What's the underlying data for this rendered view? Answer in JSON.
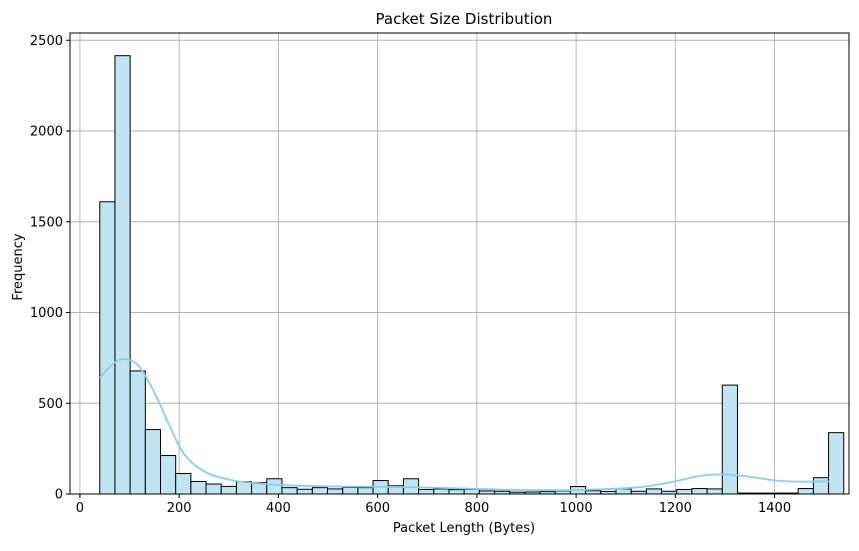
{
  "chart_data": {
    "type": "bar",
    "subtype": "histogram-with-kde",
    "title": "Packet Size Distribution",
    "xlabel": "Packet Length (Bytes)",
    "ylabel": "Frequency",
    "xlim": [
      -20,
      1550
    ],
    "ylim": [
      0,
      2540
    ],
    "xticks": [
      0,
      200,
      400,
      600,
      800,
      1000,
      1200,
      1400
    ],
    "yticks": [
      0,
      500,
      1000,
      1500,
      2000,
      2500
    ],
    "grid": true,
    "bin_start": 40,
    "bin_width": 30.6,
    "values": [
      1610,
      2415,
      678,
      355,
      212,
      113,
      69,
      55,
      42,
      68,
      62,
      84,
      35,
      26,
      35,
      28,
      36,
      35,
      74,
      45,
      84,
      25,
      28,
      24,
      25,
      17,
      15,
      10,
      11,
      13,
      17,
      41,
      18,
      14,
      28,
      15,
      28,
      15,
      25,
      30,
      28,
      600,
      5,
      5,
      5,
      5,
      30,
      90,
      338
    ],
    "kde": {
      "x": [
        40,
        60,
        80,
        100,
        120,
        150,
        180,
        210,
        250,
        300,
        350,
        400,
        500,
        600,
        700,
        800,
        900,
        1000,
        1100,
        1150,
        1200,
        1250,
        1300,
        1350,
        1400,
        1450,
        1500,
        1510
      ],
      "y": [
        640,
        700,
        740,
        738,
        700,
        560,
        380,
        220,
        125,
        80,
        60,
        50,
        42,
        40,
        36,
        28,
        22,
        22,
        32,
        45,
        70,
        100,
        108,
        95,
        75,
        68,
        70,
        68
      ]
    },
    "colors": {
      "bar_fill": "#c1e4f2",
      "bar_edge": "#000000",
      "kde_line": "#87ceeb",
      "grid": "#b0b0b0"
    }
  }
}
